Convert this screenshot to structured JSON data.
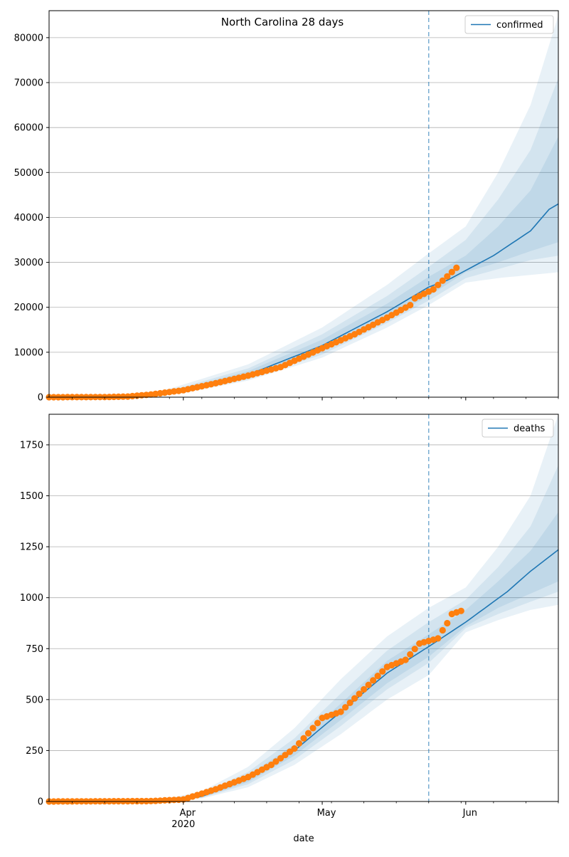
{
  "figure": {
    "title": "North Carolina 28 days",
    "xlabel": "date",
    "x_tick_labels": [
      "Apr",
      "May",
      "Jun"
    ],
    "x_year_label": "2020"
  },
  "colors": {
    "forecast_line": "#1f77b4",
    "observed_points": "#ff7f0e",
    "band": "#1f77b4",
    "split_line": "#1f77b4",
    "grid": "#b0b0b0"
  },
  "chart_data": [
    {
      "type": "line",
      "name": "confirmed",
      "x_start": "2020-03-03",
      "x_end": "2020-06-21",
      "forecast_split": "2020-05-24",
      "xlim": [
        "2020-03-03",
        "2020-06-21"
      ],
      "ylim": [
        0,
        86000
      ],
      "y_ticks": [
        0,
        10000,
        20000,
        30000,
        40000,
        50000,
        60000,
        70000,
        80000
      ],
      "grid": "horizontal",
      "legend": {
        "entries": [
          "confirmed"
        ],
        "position": "top-right"
      },
      "line_knots": [
        [
          "2020-03-03",
          0
        ],
        [
          "2020-03-20",
          250
        ],
        [
          "2020-04-01",
          1600
        ],
        [
          "2020-04-15",
          5000
        ],
        [
          "2020-05-01",
          11500
        ],
        [
          "2020-05-15",
          19000
        ],
        [
          "2020-05-24",
          24500
        ],
        [
          "2020-05-28",
          26000
        ],
        [
          "2020-06-07",
          31500
        ],
        [
          "2020-06-15",
          37000
        ],
        [
          "2020-06-19",
          41800
        ],
        [
          "2020-06-21",
          43000
        ]
      ],
      "bands": [
        {
          "level": "outer",
          "upper": [
            [
              "2020-03-03",
              0
            ],
            [
              "2020-03-25",
              700
            ],
            [
              "2020-04-01",
              2800
            ],
            [
              "2020-04-15",
              7300
            ],
            [
              "2020-05-01",
              15500
            ],
            [
              "2020-05-15",
              25000
            ],
            [
              "2020-05-24",
              32000
            ],
            [
              "2020-06-01",
              38000
            ],
            [
              "2020-06-08",
              50000
            ],
            [
              "2020-06-15",
              65000
            ],
            [
              "2020-06-21",
              85000
            ]
          ],
          "lower": [
            [
              "2020-03-03",
              0
            ],
            [
              "2020-03-25",
              200
            ],
            [
              "2020-04-01",
              900
            ],
            [
              "2020-04-15",
              3700
            ],
            [
              "2020-05-01",
              8800
            ],
            [
              "2020-05-15",
              15500
            ],
            [
              "2020-05-24",
              20500
            ],
            [
              "2020-06-01",
              25500
            ],
            [
              "2020-06-08",
              26500
            ],
            [
              "2020-06-15",
              27200
            ],
            [
              "2020-06-21",
              27800
            ]
          ]
        },
        {
          "level": "middle",
          "upper": [
            [
              "2020-03-03",
              0
            ],
            [
              "2020-03-25",
              550
            ],
            [
              "2020-04-01",
              2300
            ],
            [
              "2020-04-15",
              6400
            ],
            [
              "2020-05-01",
              14000
            ],
            [
              "2020-05-15",
              22500
            ],
            [
              "2020-05-24",
              29000
            ],
            [
              "2020-06-01",
              35000
            ],
            [
              "2020-06-08",
              44000
            ],
            [
              "2020-06-15",
              55000
            ],
            [
              "2020-06-21",
              71000
            ]
          ],
          "lower": [
            [
              "2020-03-03",
              0
            ],
            [
              "2020-03-25",
              250
            ],
            [
              "2020-04-01",
              1100
            ],
            [
              "2020-04-15",
              4000
            ],
            [
              "2020-05-01",
              9500
            ],
            [
              "2020-05-15",
              16500
            ],
            [
              "2020-05-24",
              21500
            ],
            [
              "2020-06-01",
              26500
            ],
            [
              "2020-06-08",
              28500
            ],
            [
              "2020-06-15",
              30500
            ],
            [
              "2020-06-21",
              31500
            ]
          ]
        },
        {
          "level": "inner",
          "upper": [
            [
              "2020-03-03",
              0
            ],
            [
              "2020-03-25",
              450
            ],
            [
              "2020-04-01",
              2000
            ],
            [
              "2020-04-15",
              5800
            ],
            [
              "2020-05-01",
              12800
            ],
            [
              "2020-05-15",
              20800
            ],
            [
              "2020-05-24",
              26800
            ],
            [
              "2020-06-01",
              31500
            ],
            [
              "2020-06-08",
              38000
            ],
            [
              "2020-06-15",
              46000
            ],
            [
              "2020-06-21",
              58000
            ]
          ],
          "lower": [
            [
              "2020-03-03",
              0
            ],
            [
              "2020-03-25",
              300
            ],
            [
              "2020-04-01",
              1250
            ],
            [
              "2020-04-15",
              4400
            ],
            [
              "2020-05-01",
              10300
            ],
            [
              "2020-05-15",
              17500
            ],
            [
              "2020-05-24",
              22500
            ],
            [
              "2020-06-01",
              27800
            ],
            [
              "2020-06-08",
              30000
            ],
            [
              "2020-06-15",
              32500
            ],
            [
              "2020-06-21",
              34500
            ]
          ]
        }
      ],
      "observed_knots": [
        [
          "2020-03-03",
          0
        ],
        [
          "2020-03-15",
          30
        ],
        [
          "2020-03-20",
          150
        ],
        [
          "2020-03-25",
          600
        ],
        [
          "2020-04-01",
          1550
        ],
        [
          "2020-04-08",
          3100
        ],
        [
          "2020-04-15",
          4800
        ],
        [
          "2020-04-22",
          6700
        ],
        [
          "2020-05-01",
          10900
        ],
        [
          "2020-05-08",
          14000
        ],
        [
          "2020-05-15",
          17700
        ],
        [
          "2020-05-20",
          20500
        ],
        [
          "2020-05-21",
          22000
        ],
        [
          "2020-05-25",
          24000
        ],
        [
          "2020-05-30",
          28800
        ]
      ],
      "observed_end": "2020-05-30"
    },
    {
      "type": "line",
      "name": "deaths",
      "x_start": "2020-03-03",
      "x_end": "2020-06-21",
      "forecast_split": "2020-05-24",
      "xlim": [
        "2020-03-03",
        "2020-06-21"
      ],
      "ylim": [
        0,
        1900
      ],
      "y_ticks": [
        0,
        250,
        500,
        750,
        1000,
        1250,
        1500,
        1750
      ],
      "grid": "horizontal",
      "legend": {
        "entries": [
          "deaths"
        ],
        "position": "top-right"
      },
      "line_knots": [
        [
          "2020-03-03",
          0
        ],
        [
          "2020-03-28",
          5
        ],
        [
          "2020-04-05",
          25
        ],
        [
          "2020-04-15",
          110
        ],
        [
          "2020-04-25",
          250
        ],
        [
          "2020-05-05",
          440
        ],
        [
          "2020-05-15",
          630
        ],
        [
          "2020-05-24",
          760
        ],
        [
          "2020-06-01",
          880
        ],
        [
          "2020-06-10",
          1030
        ],
        [
          "2020-06-15",
          1130
        ],
        [
          "2020-06-21",
          1235
        ]
      ],
      "bands": [
        {
          "level": "outer",
          "upper": [
            [
              "2020-03-03",
              0
            ],
            [
              "2020-03-28",
              12
            ],
            [
              "2020-04-05",
              50
            ],
            [
              "2020-04-15",
              170
            ],
            [
              "2020-04-25",
              360
            ],
            [
              "2020-05-05",
              600
            ],
            [
              "2020-05-15",
              810
            ],
            [
              "2020-05-24",
              950
            ],
            [
              "2020-06-01",
              1050
            ],
            [
              "2020-06-08",
              1250
            ],
            [
              "2020-06-15",
              1500
            ],
            [
              "2020-06-21",
              1900
            ]
          ],
          "lower": [
            [
              "2020-03-03",
              0
            ],
            [
              "2020-03-28",
              3
            ],
            [
              "2020-04-05",
              15
            ],
            [
              "2020-04-15",
              70
            ],
            [
              "2020-04-25",
              180
            ],
            [
              "2020-05-05",
              330
            ],
            [
              "2020-05-15",
              500
            ],
            [
              "2020-05-24",
              620
            ],
            [
              "2020-06-01",
              830
            ],
            [
              "2020-06-08",
              890
            ],
            [
              "2020-06-15",
              940
            ],
            [
              "2020-06-21",
              965
            ]
          ]
        },
        {
          "level": "middle",
          "upper": [
            [
              "2020-03-03",
              0
            ],
            [
              "2020-03-28",
              9
            ],
            [
              "2020-04-05",
              40
            ],
            [
              "2020-04-15",
              145
            ],
            [
              "2020-04-25",
              310
            ],
            [
              "2020-05-05",
              530
            ],
            [
              "2020-05-15",
              740
            ],
            [
              "2020-05-24",
              880
            ],
            [
              "2020-06-01",
              990
            ],
            [
              "2020-06-08",
              1150
            ],
            [
              "2020-06-15",
              1350
            ],
            [
              "2020-06-21",
              1650
            ]
          ],
          "lower": [
            [
              "2020-03-03",
              0
            ],
            [
              "2020-03-28",
              4
            ],
            [
              "2020-04-05",
              18
            ],
            [
              "2020-04-15",
              85
            ],
            [
              "2020-04-25",
              205
            ],
            [
              "2020-05-05",
              370
            ],
            [
              "2020-05-15",
              550
            ],
            [
              "2020-05-24",
              680
            ],
            [
              "2020-06-01",
              850
            ],
            [
              "2020-06-08",
              920
            ],
            [
              "2020-06-15",
              980
            ],
            [
              "2020-06-21",
              1030
            ]
          ]
        },
        {
          "level": "inner",
          "upper": [
            [
              "2020-03-03",
              0
            ],
            [
              "2020-03-28",
              7
            ],
            [
              "2020-04-05",
              33
            ],
            [
              "2020-04-15",
              128
            ],
            [
              "2020-04-25",
              280
            ],
            [
              "2020-05-05",
              480
            ],
            [
              "2020-05-15",
              690
            ],
            [
              "2020-05-24",
              820
            ],
            [
              "2020-06-01",
              940
            ],
            [
              "2020-06-08",
              1080
            ],
            [
              "2020-06-15",
              1230
            ],
            [
              "2020-06-21",
              1420
            ]
          ],
          "lower": [
            [
              "2020-03-03",
              0
            ],
            [
              "2020-03-28",
              4
            ],
            [
              "2020-04-05",
              20
            ],
            [
              "2020-04-15",
              95
            ],
            [
              "2020-04-25",
              225
            ],
            [
              "2020-05-05",
              400
            ],
            [
              "2020-05-15",
              580
            ],
            [
              "2020-05-24",
              710
            ],
            [
              "2020-06-01",
              860
            ],
            [
              "2020-06-08",
              950
            ],
            [
              "2020-06-15",
              1020
            ],
            [
              "2020-06-21",
              1080
            ]
          ]
        }
      ],
      "observed_knots": [
        [
          "2020-03-03",
          0
        ],
        [
          "2020-03-25",
          2
        ],
        [
          "2020-04-01",
          10
        ],
        [
          "2020-04-08",
          60
        ],
        [
          "2020-04-15",
          120
        ],
        [
          "2020-04-20",
          180
        ],
        [
          "2020-04-25",
          260
        ],
        [
          "2020-05-01",
          410
        ],
        [
          "2020-05-05",
          440
        ],
        [
          "2020-05-10",
          550
        ],
        [
          "2020-05-15",
          660
        ],
        [
          "2020-05-19",
          695
        ],
        [
          "2020-05-22",
          775
        ],
        [
          "2020-05-26",
          800
        ],
        [
          "2020-05-27",
          840
        ],
        [
          "2020-05-28",
          875
        ],
        [
          "2020-05-29",
          920
        ],
        [
          "2020-05-31",
          935
        ]
      ],
      "observed_end": "2020-05-31"
    }
  ]
}
